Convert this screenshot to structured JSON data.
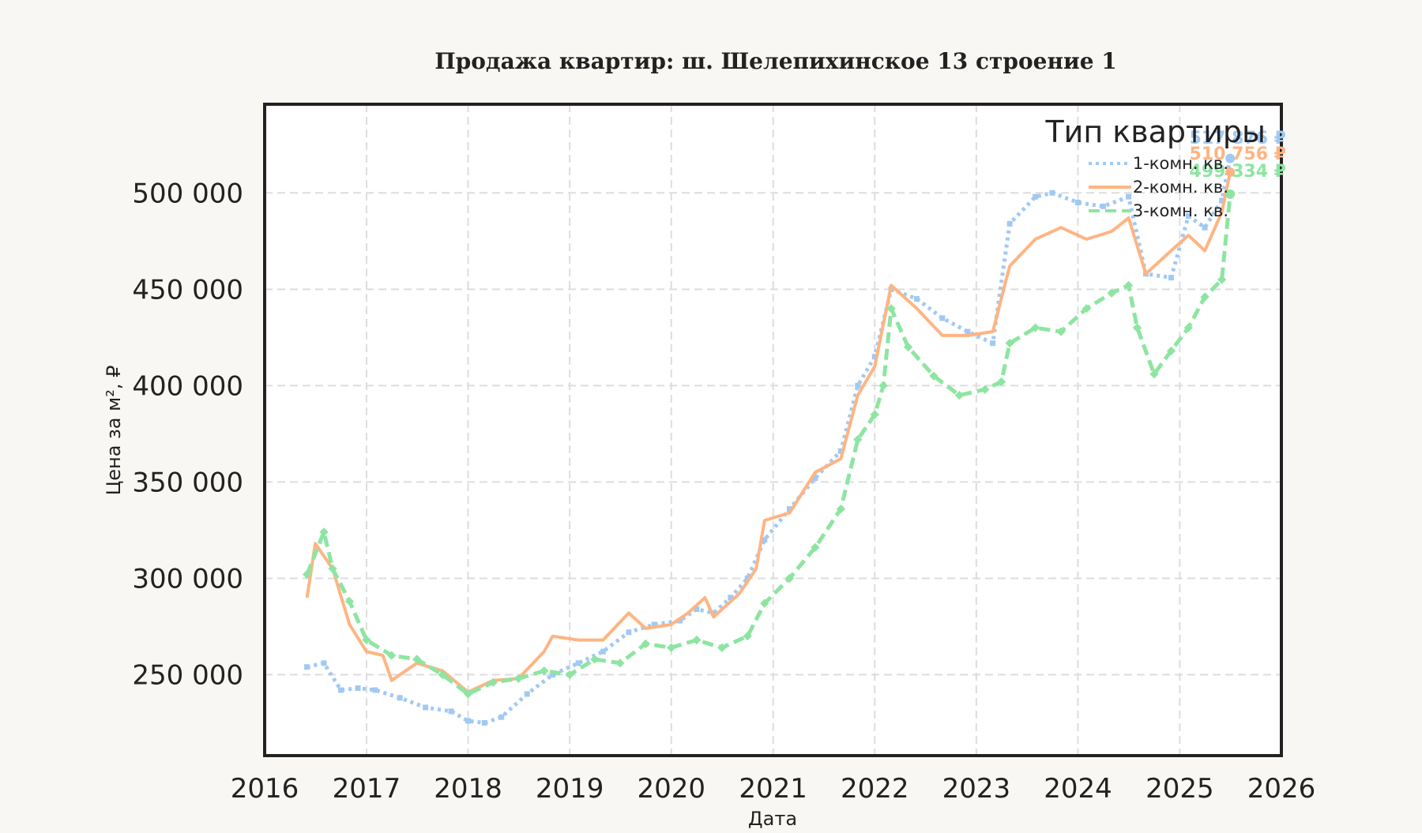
{
  "chart_data": {
    "type": "line",
    "title": "Продажа квартир: ш. Шелепихинское 13 строение 1",
    "xlabel": "Дата",
    "ylabel": "Цена за м², ₽",
    "x_ticks": [
      "2016",
      "2017",
      "2018",
      "2019",
      "2020",
      "2021",
      "2022",
      "2023",
      "2024",
      "2025",
      "2026"
    ],
    "y_ticks": [
      "250 000",
      "300 000",
      "350 000",
      "400 000",
      "450 000",
      "500 000"
    ],
    "y_tick_values": [
      250000,
      300000,
      350000,
      400000,
      450000,
      500000
    ],
    "xlim": [
      "2016-01-01",
      "2026-01-01"
    ],
    "ylim": [
      208000,
      546000
    ],
    "grid": true,
    "legend": {
      "title": "Тип квартиры",
      "placement": "top-right"
    },
    "series": [
      {
        "name": "1-комн. кв.",
        "color": "#a1c9f4",
        "style": "dotted",
        "end_label": "517 876 ₽",
        "points": [
          [
            "2016-06-01",
            254000
          ],
          [
            "2016-08-01",
            256000
          ],
          [
            "2016-10-01",
            242000
          ],
          [
            "2016-12-01",
            243000
          ],
          [
            "2017-02-01",
            242000
          ],
          [
            "2017-05-01",
            238000
          ],
          [
            "2017-08-01",
            233000
          ],
          [
            "2017-11-01",
            231000
          ],
          [
            "2018-01-01",
            226000
          ],
          [
            "2018-03-01",
            225000
          ],
          [
            "2018-05-01",
            228000
          ],
          [
            "2018-08-01",
            240000
          ],
          [
            "2018-11-01",
            250000
          ],
          [
            "2019-02-01",
            256000
          ],
          [
            "2019-05-01",
            262000
          ],
          [
            "2019-08-01",
            272000
          ],
          [
            "2019-11-01",
            276000
          ],
          [
            "2020-02-01",
            278000
          ],
          [
            "2020-04-01",
            284000
          ],
          [
            "2020-06-01",
            282000
          ],
          [
            "2020-08-01",
            290000
          ],
          [
            "2020-10-01",
            300000
          ],
          [
            "2020-12-01",
            320000
          ],
          [
            "2021-03-01",
            336000
          ],
          [
            "2021-06-01",
            352000
          ],
          [
            "2021-09-01",
            366000
          ],
          [
            "2021-11-01",
            400000
          ],
          [
            "2022-01-01",
            415000
          ],
          [
            "2022-03-01",
            450000
          ],
          [
            "2022-06-01",
            445000
          ],
          [
            "2022-09-01",
            435000
          ],
          [
            "2022-12-01",
            428000
          ],
          [
            "2023-03-01",
            422000
          ],
          [
            "2023-05-01",
            484000
          ],
          [
            "2023-08-01",
            498000
          ],
          [
            "2023-10-01",
            500000
          ],
          [
            "2024-01-01",
            495000
          ],
          [
            "2024-04-01",
            493000
          ],
          [
            "2024-07-01",
            498000
          ],
          [
            "2024-09-01",
            458000
          ],
          [
            "2024-12-01",
            456000
          ],
          [
            "2025-02-01",
            488000
          ],
          [
            "2025-04-01",
            482000
          ],
          [
            "2025-06-01",
            496000
          ],
          [
            "2025-07-01",
            517876
          ]
        ]
      },
      {
        "name": "2-комн. кв.",
        "color": "#ffb482",
        "style": "solid",
        "end_label": "510 756 ₽",
        "points": [
          [
            "2016-06-01",
            290000
          ],
          [
            "2016-07-01",
            318000
          ],
          [
            "2016-09-01",
            305000
          ],
          [
            "2016-11-01",
            276000
          ],
          [
            "2017-01-01",
            262000
          ],
          [
            "2017-03-01",
            260000
          ],
          [
            "2017-04-01",
            247000
          ],
          [
            "2017-07-01",
            256000
          ],
          [
            "2017-10-01",
            252000
          ],
          [
            "2018-01-01",
            241000
          ],
          [
            "2018-04-01",
            247000
          ],
          [
            "2018-07-01",
            248000
          ],
          [
            "2018-10-01",
            262000
          ],
          [
            "2018-11-01",
            270000
          ],
          [
            "2019-02-01",
            268000
          ],
          [
            "2019-05-01",
            268000
          ],
          [
            "2019-08-01",
            282000
          ],
          [
            "2019-10-01",
            274000
          ],
          [
            "2020-01-01",
            276000
          ],
          [
            "2020-03-01",
            282000
          ],
          [
            "2020-05-01",
            290000
          ],
          [
            "2020-06-01",
            280000
          ],
          [
            "2020-09-01",
            292000
          ],
          [
            "2020-11-01",
            305000
          ],
          [
            "2020-12-01",
            330000
          ],
          [
            "2021-03-01",
            334000
          ],
          [
            "2021-06-01",
            355000
          ],
          [
            "2021-09-01",
            362000
          ],
          [
            "2021-11-01",
            395000
          ],
          [
            "2022-01-01",
            410000
          ],
          [
            "2022-03-01",
            452000
          ],
          [
            "2022-06-01",
            440000
          ],
          [
            "2022-09-01",
            426000
          ],
          [
            "2022-12-01",
            426000
          ],
          [
            "2023-03-01",
            428000
          ],
          [
            "2023-05-01",
            462000
          ],
          [
            "2023-08-01",
            476000
          ],
          [
            "2023-11-01",
            482000
          ],
          [
            "2024-02-01",
            476000
          ],
          [
            "2024-05-01",
            480000
          ],
          [
            "2024-07-01",
            487000
          ],
          [
            "2024-09-01",
            458000
          ],
          [
            "2024-12-01",
            470000
          ],
          [
            "2025-02-01",
            478000
          ],
          [
            "2025-04-01",
            470000
          ],
          [
            "2025-06-01",
            490000
          ],
          [
            "2025-07-01",
            510756
          ]
        ]
      },
      {
        "name": "3-комн. кв.",
        "color": "#8de5a1",
        "style": "dashed",
        "end_label": "499 334 ₽",
        "points": [
          [
            "2016-06-01",
            302000
          ],
          [
            "2016-08-01",
            324000
          ],
          [
            "2016-09-01",
            305000
          ],
          [
            "2016-11-01",
            288000
          ],
          [
            "2017-01-01",
            268000
          ],
          [
            "2017-04-01",
            260000
          ],
          [
            "2017-07-01",
            258000
          ],
          [
            "2017-10-01",
            250000
          ],
          [
            "2018-01-01",
            240000
          ],
          [
            "2018-04-01",
            246000
          ],
          [
            "2018-07-01",
            248000
          ],
          [
            "2018-10-01",
            252000
          ],
          [
            "2019-01-01",
            250000
          ],
          [
            "2019-04-01",
            258000
          ],
          [
            "2019-07-01",
            256000
          ],
          [
            "2019-10-01",
            266000
          ],
          [
            "2020-01-01",
            264000
          ],
          [
            "2020-04-01",
            268000
          ],
          [
            "2020-07-01",
            264000
          ],
          [
            "2020-10-01",
            270000
          ],
          [
            "2020-12-01",
            287000
          ],
          [
            "2021-03-01",
            300000
          ],
          [
            "2021-06-01",
            316000
          ],
          [
            "2021-09-01",
            336000
          ],
          [
            "2021-11-01",
            372000
          ],
          [
            "2022-01-01",
            385000
          ],
          [
            "2022-02-01",
            400000
          ],
          [
            "2022-03-01",
            440000
          ],
          [
            "2022-05-01",
            420000
          ],
          [
            "2022-08-01",
            405000
          ],
          [
            "2022-11-01",
            395000
          ],
          [
            "2023-02-01",
            398000
          ],
          [
            "2023-04-01",
            402000
          ],
          [
            "2023-05-01",
            422000
          ],
          [
            "2023-08-01",
            430000
          ],
          [
            "2023-11-01",
            428000
          ],
          [
            "2024-02-01",
            440000
          ],
          [
            "2024-05-01",
            448000
          ],
          [
            "2024-07-01",
            452000
          ],
          [
            "2024-08-01",
            430000
          ],
          [
            "2024-10-01",
            406000
          ],
          [
            "2024-12-01",
            418000
          ],
          [
            "2025-02-01",
            430000
          ],
          [
            "2025-04-01",
            446000
          ],
          [
            "2025-06-01",
            455000
          ],
          [
            "2025-07-01",
            499334
          ]
        ]
      }
    ]
  }
}
